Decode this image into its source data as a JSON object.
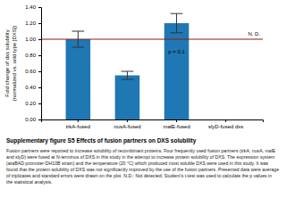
{
  "chart_data": {
    "type": "bar",
    "title": "Supplementary figure S5 Effects of fusion partners on DXS solubility",
    "caption": "Fusion partners were reported to increase solubility of recombinant proteins. Four frequently used fusion partners (trkA, nusA, malE\nand slyD) were fused at N-terminus of DXS in this study in the attempt to increase protein solubility of DXS. The expression system\n(araBAD promoter-DH10B strain) and the temperature (20 °C) which produced most soluble DXS were used in this study. It was\nfound that the protein solubility of DXS was not significantly improved by the use of the fusion partners. Presented data were average\nof triplicates and standard errors were drawn on the plot. N.D.: Not detected. Student's t-test was used to calculate the p values in\nthe statistical analysis.",
    "categories": [
      "trkA-fused",
      "nusA-fused",
      "malE-fused",
      "slyD-fused dxs"
    ],
    "values": [
      1.0,
      0.55,
      1.2,
      0.0
    ],
    "errors": [
      0.1,
      0.05,
      0.12,
      0.0
    ],
    "ylabel": "Fold change of dxs solubility\n(normalized vs. wild type [DXS])",
    "ylim": [
      0.0,
      1.4
    ],
    "yticks": [
      {
        "value": 0.0,
        "label": "0.00"
      },
      {
        "value": 0.2,
        "label": "0.20"
      },
      {
        "value": 0.4,
        "label": "0.40"
      },
      {
        "value": 0.6,
        "label": "0.60"
      },
      {
        "value": 0.8,
        "label": "0.80"
      },
      {
        "value": 1.0,
        "label": "1.00"
      },
      {
        "value": 1.2,
        "label": "1.20"
      },
      {
        "value": 1.4,
        "label": "1.40"
      }
    ],
    "reference_line": {
      "value": 1.0,
      "color": "#8b1a1a"
    },
    "annotations": [
      {
        "text": "p = 0.1",
        "category": "malE-fused",
        "y": 0.87
      },
      {
        "text": "N. D.",
        "category": "slyD-fused dxs",
        "y": 1.03
      }
    ],
    "grid": false
  }
}
